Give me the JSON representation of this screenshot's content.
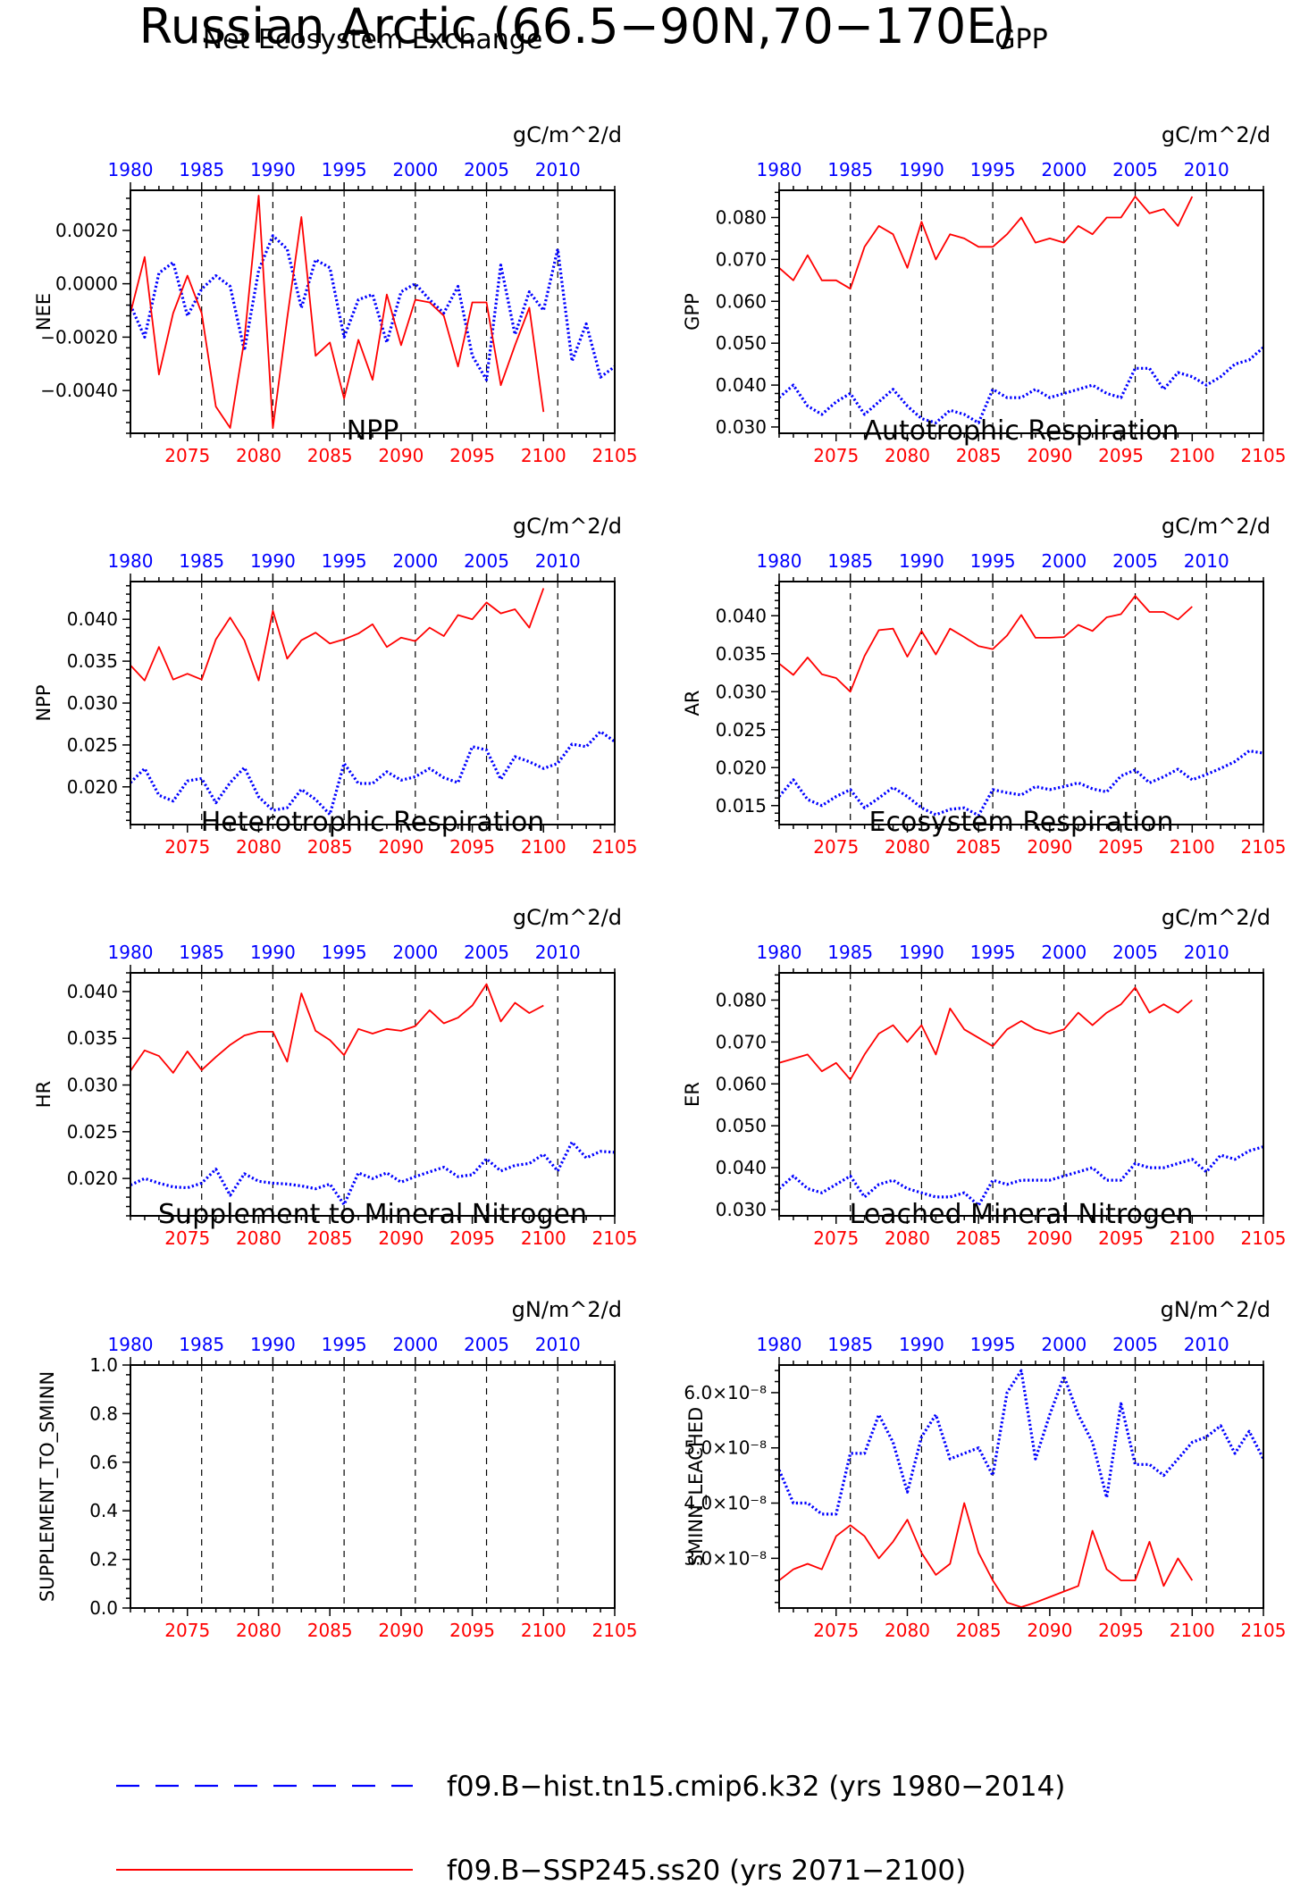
{
  "page_title": "Russian Arctic (66.5−90N,70−170E)",
  "colors": {
    "hist": "#0000ff",
    "ssp": "#ff0000",
    "axis": "#000000"
  },
  "top_axis_ticks": [
    "1980",
    "1985",
    "1990",
    "1995",
    "2000",
    "2005",
    "2010"
  ],
  "bottom_axis_ticks": [
    "2075",
    "2080",
    "2085",
    "2090",
    "2095",
    "2100",
    "2105"
  ],
  "legend": [
    {
      "label": "f09.B−hist.tn15.cmip6.k32 (yrs 1980−2014)",
      "color": "#0000ff",
      "style": "dashed"
    },
    {
      "label": "f09.B−SSP245.ss20 (yrs 2071−2100)",
      "color": "#ff0000",
      "style": "solid"
    }
  ],
  "chart_data": [
    {
      "type": "line",
      "title": "Net Ecosystem Exchange",
      "ylabel": "NEE",
      "units": "gC/m^2/d",
      "ylim": [
        -0.0056,
        0.0035
      ],
      "yticks": [
        -0.004,
        -0.002,
        0.0,
        0.002
      ],
      "yticklabels": [
        "−0.0040",
        "−0.0020",
        "0.0000",
        "0.0020"
      ],
      "xlim_hist": [
        1980,
        2014
      ],
      "xlim_ssp": [
        2071,
        2105
      ],
      "series": [
        {
          "name": "f09.B−hist.tn15.cmip6.k32",
          "x_start": 1980,
          "values": [
            -0.0008,
            -0.002,
            0.0004,
            0.0008,
            -0.0012,
            -0.0002,
            0.0003,
            -0.0001,
            -0.0025,
            0.0005,
            0.0018,
            0.0013,
            -0.0009,
            0.0009,
            0.0006,
            -0.002,
            -0.0006,
            -0.0004,
            -0.0022,
            -0.0003,
            0.0,
            -0.0006,
            -0.0011,
            -0.0001,
            -0.0027,
            -0.0036,
            0.0007,
            -0.0019,
            -0.0003,
            -0.001,
            0.0013,
            -0.0029,
            -0.0015,
            -0.0035,
            -0.0031
          ]
        },
        {
          "name": "f09.B−SSP245.ss20",
          "x_start": 2071,
          "values": [
            -0.0011,
            0.001,
            -0.0034,
            -0.0011,
            0.0003,
            -0.0011,
            -0.0046,
            -0.0054,
            -0.0021,
            0.0033,
            -0.0054,
            -0.0013,
            0.0025,
            -0.0027,
            -0.0022,
            -0.0043,
            -0.0021,
            -0.0036,
            -0.0004,
            -0.0023,
            -0.0006,
            -0.0007,
            -0.0012,
            -0.0031,
            -0.0007,
            -0.0007,
            -0.0038,
            -0.0023,
            -0.0009,
            -0.0048
          ]
        }
      ]
    },
    {
      "type": "line",
      "title": "GPP",
      "ylabel": "GPP",
      "units": "gC/m^2/d",
      "ylim": [
        0.0285,
        0.0865
      ],
      "yticks": [
        0.03,
        0.04,
        0.05,
        0.06,
        0.07,
        0.08
      ],
      "yticklabels": [
        "0.030",
        "0.040",
        "0.050",
        "0.060",
        "0.070",
        "0.080"
      ],
      "xlim_hist": [
        1980,
        2014
      ],
      "xlim_ssp": [
        2071,
        2105
      ],
      "series": [
        {
          "name": "f09.B−hist.tn15.cmip6.k32",
          "x_start": 1980,
          "values": [
            0.037,
            0.04,
            0.035,
            0.033,
            0.036,
            0.038,
            0.033,
            0.036,
            0.039,
            0.035,
            0.032,
            0.031,
            0.034,
            0.033,
            0.031,
            0.039,
            0.037,
            0.037,
            0.039,
            0.037,
            0.038,
            0.039,
            0.04,
            0.038,
            0.037,
            0.044,
            0.044,
            0.039,
            0.043,
            0.042,
            0.04,
            0.042,
            0.045,
            0.046,
            0.049
          ]
        },
        {
          "name": "f09.B−SSP245.ss20",
          "x_start": 2071,
          "values": [
            0.068,
            0.065,
            0.071,
            0.065,
            0.065,
            0.063,
            0.073,
            0.078,
            0.076,
            0.068,
            0.079,
            0.07,
            0.076,
            0.075,
            0.073,
            0.073,
            0.076,
            0.08,
            0.074,
            0.075,
            0.074,
            0.078,
            0.076,
            0.08,
            0.08,
            0.085,
            0.081,
            0.082,
            0.078,
            0.085
          ]
        }
      ]
    },
    {
      "type": "line",
      "title": "NPP",
      "ylabel": "NPP",
      "units": "gC/m^2/d",
      "ylim": [
        0.0155,
        0.0445
      ],
      "yticks": [
        0.02,
        0.025,
        0.03,
        0.035,
        0.04
      ],
      "yticklabels": [
        "0.020",
        "0.025",
        "0.030",
        "0.035",
        "0.040"
      ],
      "xlim_hist": [
        1980,
        2014
      ],
      "xlim_ssp": [
        2071,
        2105
      ],
      "series": [
        {
          "name": "f09.B−hist.tn15.cmip6.k32",
          "x_start": 1980,
          "values": [
            0.0205,
            0.0222,
            0.019,
            0.0183,
            0.0207,
            0.021,
            0.0181,
            0.0205,
            0.0223,
            0.0188,
            0.0172,
            0.0175,
            0.0197,
            0.0185,
            0.0167,
            0.0228,
            0.0204,
            0.0204,
            0.0218,
            0.0208,
            0.0212,
            0.0222,
            0.0211,
            0.0205,
            0.0248,
            0.0244,
            0.0209,
            0.0236,
            0.023,
            0.0222,
            0.0228,
            0.0251,
            0.0248,
            0.0266,
            0.0254
          ]
        },
        {
          "name": "f09.B−SSP245.ss20",
          "x_start": 2071,
          "values": [
            0.0345,
            0.0327,
            0.0367,
            0.0328,
            0.0335,
            0.0328,
            0.0376,
            0.0402,
            0.0375,
            0.0327,
            0.041,
            0.0353,
            0.0375,
            0.0384,
            0.0371,
            0.0376,
            0.0383,
            0.0394,
            0.0367,
            0.0378,
            0.0374,
            0.039,
            0.038,
            0.0405,
            0.04,
            0.042,
            0.0407,
            0.0412,
            0.039,
            0.0437
          ]
        }
      ]
    },
    {
      "type": "line",
      "title": "Autotrophic Respiration",
      "ylabel": "AR",
      "units": "gC/m^2/d",
      "ylim": [
        0.0125,
        0.0445
      ],
      "yticks": [
        0.015,
        0.02,
        0.025,
        0.03,
        0.035,
        0.04
      ],
      "yticklabels": [
        "0.015",
        "0.020",
        "0.025",
        "0.030",
        "0.035",
        "0.040"
      ],
      "xlim_hist": [
        1980,
        2014
      ],
      "xlim_ssp": [
        2071,
        2105
      ],
      "series": [
        {
          "name": "f09.B−hist.tn15.cmip6.k32",
          "x_start": 1980,
          "values": [
            0.0162,
            0.0184,
            0.0158,
            0.015,
            0.0162,
            0.0171,
            0.0147,
            0.016,
            0.0174,
            0.0162,
            0.0147,
            0.0138,
            0.0145,
            0.0147,
            0.0137,
            0.0171,
            0.0167,
            0.0164,
            0.0175,
            0.0171,
            0.0175,
            0.018,
            0.0172,
            0.0168,
            0.0189,
            0.0197,
            0.018,
            0.0188,
            0.0198,
            0.0184,
            0.0191,
            0.0199,
            0.0208,
            0.0222,
            0.0219
          ]
        },
        {
          "name": "f09.B−SSP245.ss20",
          "x_start": 2071,
          "values": [
            0.0337,
            0.0322,
            0.0345,
            0.0323,
            0.0318,
            0.03,
            0.0347,
            0.0381,
            0.0383,
            0.0346,
            0.038,
            0.0349,
            0.0383,
            0.0372,
            0.036,
            0.0356,
            0.0374,
            0.0401,
            0.0371,
            0.0371,
            0.0372,
            0.0388,
            0.038,
            0.0398,
            0.0402,
            0.0426,
            0.0405,
            0.0405,
            0.0395,
            0.0412
          ]
        }
      ]
    },
    {
      "type": "line",
      "title": "Heterotrophic Respiration",
      "ylabel": "HR",
      "units": "gC/m^2/d",
      "ylim": [
        0.016,
        0.042
      ],
      "yticks": [
        0.02,
        0.025,
        0.03,
        0.035,
        0.04
      ],
      "yticklabels": [
        "0.020",
        "0.025",
        "0.030",
        "0.035",
        "0.040"
      ],
      "xlim_hist": [
        1980,
        2014
      ],
      "xlim_ssp": [
        2071,
        2105
      ],
      "series": [
        {
          "name": "f09.B−hist.tn15.cmip6.k32",
          "x_start": 1980,
          "values": [
            0.0193,
            0.02,
            0.0195,
            0.0191,
            0.019,
            0.0195,
            0.021,
            0.0182,
            0.0205,
            0.0197,
            0.0195,
            0.0194,
            0.0192,
            0.0189,
            0.0194,
            0.0172,
            0.0206,
            0.02,
            0.0206,
            0.0196,
            0.0202,
            0.0207,
            0.0212,
            0.0202,
            0.0204,
            0.0221,
            0.0208,
            0.0214,
            0.0216,
            0.0226,
            0.0208,
            0.0239,
            0.0222,
            0.0229,
            0.0228
          ]
        },
        {
          "name": "f09.B−SSP245.ss20",
          "x_start": 2071,
          "values": [
            0.0315,
            0.0337,
            0.0331,
            0.0313,
            0.0336,
            0.0316,
            0.033,
            0.0343,
            0.0353,
            0.0357,
            0.0357,
            0.0325,
            0.0398,
            0.0358,
            0.0348,
            0.0332,
            0.036,
            0.0355,
            0.036,
            0.0358,
            0.0363,
            0.038,
            0.0366,
            0.0372,
            0.0385,
            0.0408,
            0.0368,
            0.0388,
            0.0377,
            0.0385
          ]
        }
      ]
    },
    {
      "type": "line",
      "title": "Ecosystem Respiration",
      "ylabel": "ER",
      "units": "gC/m^2/d",
      "ylim": [
        0.0285,
        0.0865
      ],
      "yticks": [
        0.03,
        0.04,
        0.05,
        0.06,
        0.07,
        0.08
      ],
      "yticklabels": [
        "0.030",
        "0.040",
        "0.050",
        "0.060",
        "0.070",
        "0.080"
      ],
      "xlim_hist": [
        1980,
        2014
      ],
      "xlim_ssp": [
        2071,
        2105
      ],
      "series": [
        {
          "name": "f09.B−hist.tn15.cmip6.k32",
          "x_start": 1980,
          "values": [
            0.035,
            0.038,
            0.035,
            0.034,
            0.036,
            0.038,
            0.033,
            0.036,
            0.037,
            0.035,
            0.034,
            0.033,
            0.033,
            0.034,
            0.031,
            0.037,
            0.036,
            0.037,
            0.037,
            0.037,
            0.038,
            0.039,
            0.04,
            0.037,
            0.037,
            0.041,
            0.04,
            0.04,
            0.041,
            0.042,
            0.039,
            0.043,
            0.042,
            0.044,
            0.045
          ]
        },
        {
          "name": "f09.B−SSP245.ss20",
          "x_start": 2071,
          "values": [
            0.065,
            0.066,
            0.067,
            0.063,
            0.065,
            0.061,
            0.067,
            0.072,
            0.074,
            0.07,
            0.074,
            0.067,
            0.078,
            0.073,
            0.071,
            0.069,
            0.073,
            0.075,
            0.073,
            0.072,
            0.073,
            0.077,
            0.074,
            0.077,
            0.079,
            0.083,
            0.077,
            0.079,
            0.077,
            0.08
          ]
        }
      ]
    },
    {
      "type": "line",
      "title": "Supplement to Mineral Nitrogen",
      "ylabel": "SUPPLEMENT_TO_SMINN",
      "units": "gN/m^2/d",
      "ylim": [
        0.0,
        1.0
      ],
      "yticks": [
        0.0,
        0.2,
        0.4,
        0.6,
        0.8,
        1.0
      ],
      "yticklabels": [
        "0.0",
        "0.2",
        "0.4",
        "0.6",
        "0.8",
        "1.0"
      ],
      "xlim_hist": [
        1980,
        2014
      ],
      "xlim_ssp": [
        2071,
        2105
      ],
      "series": []
    },
    {
      "type": "line",
      "title": "Leached Mineral Nitrogen",
      "ylabel": "SMINN_LEACHED",
      "units": "gN/m^2/d",
      "ylim": [
        2.1e-08,
        6.5e-08
      ],
      "yticks": [
        3e-08,
        4e-08,
        5e-08,
        6e-08
      ],
      "yticklabels": [
        "3.0×10⁻⁸",
        "4.0×10⁻⁸",
        "5.0×10⁻⁸",
        "6.0×10⁻⁸"
      ],
      "xlim_hist": [
        1980,
        2014
      ],
      "xlim_ssp": [
        2071,
        2105
      ],
      "series": [
        {
          "name": "f09.B−hist.tn15.cmip6.k32",
          "x_start": 1980,
          "values": [
            4.6e-08,
            4e-08,
            4e-08,
            3.8e-08,
            3.8e-08,
            4.9e-08,
            4.9e-08,
            5.6e-08,
            5.1e-08,
            4.2e-08,
            5.2e-08,
            5.6e-08,
            4.8e-08,
            4.9e-08,
            5e-08,
            4.5e-08,
            6e-08,
            6.4e-08,
            4.8e-08,
            5.6e-08,
            6.3e-08,
            5.6e-08,
            5.1e-08,
            4.1e-08,
            5.8e-08,
            4.7e-08,
            4.7e-08,
            4.5e-08,
            4.8e-08,
            5.1e-08,
            5.2e-08,
            5.4e-08,
            4.9e-08,
            5.3e-08,
            4.8e-08
          ]
        },
        {
          "name": "f09.B−SSP245.ss20",
          "x_start": 2071,
          "values": [
            2.6e-08,
            2.8e-08,
            2.9e-08,
            2.8e-08,
            3.4e-08,
            3.6e-08,
            3.4e-08,
            3e-08,
            3.3e-08,
            3.7e-08,
            3.1e-08,
            2.7e-08,
            2.9e-08,
            4e-08,
            3.1e-08,
            2.6e-08,
            2.2e-08,
            2.1e-08,
            2.2e-08,
            2.3e-08,
            2.4e-08,
            2.5e-08,
            3.5e-08,
            2.8e-08,
            2.6e-08,
            2.6e-08,
            3.3e-08,
            2.5e-08,
            3e-08,
            2.6e-08
          ]
        }
      ]
    }
  ]
}
